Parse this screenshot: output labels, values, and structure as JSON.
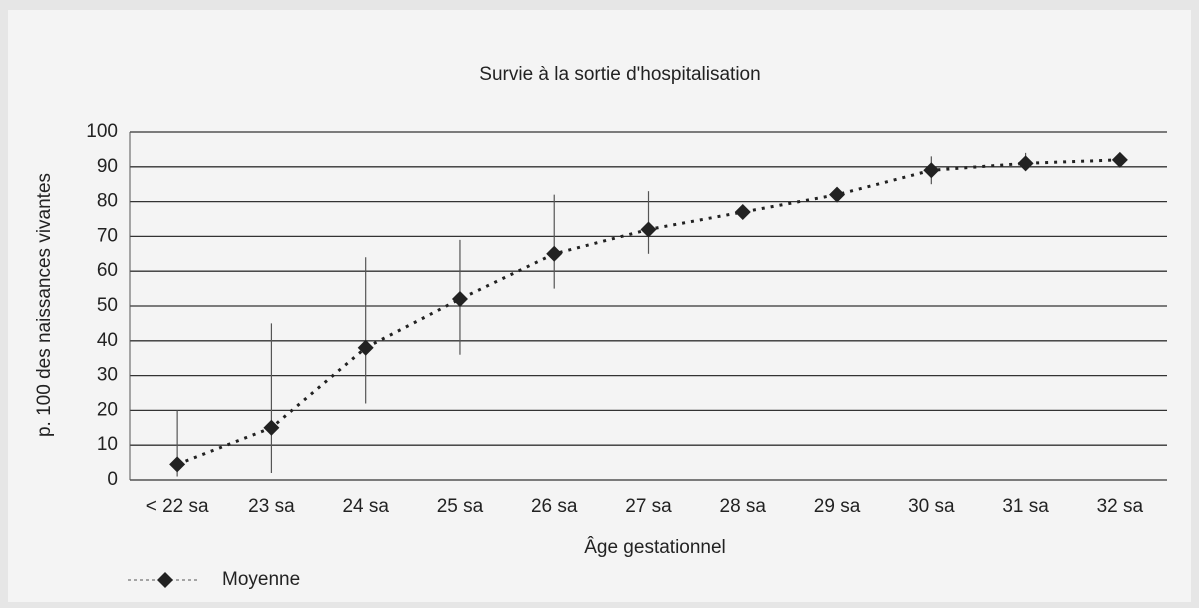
{
  "chart_data": {
    "type": "line",
    "title": "Survie à la sortie d'hospitalisation",
    "x_label": "Âge gestationnel",
    "y_label": "p. 100 des naissances vivantes",
    "categories": [
      "< 22 sa",
      "23 sa",
      "24 sa",
      "25 sa",
      "26 sa",
      "27 sa",
      "28 sa",
      "29 sa",
      "30 sa",
      "31 sa",
      "32 sa"
    ],
    "series": [
      {
        "name": "Moyenne",
        "color": "#222222",
        "values": [
          4.5,
          15,
          38,
          52,
          65,
          72,
          77,
          82,
          89,
          91,
          92
        ],
        "low": [
          1,
          2,
          22,
          36,
          55,
          65,
          75,
          80,
          85,
          89,
          91
        ],
        "high": [
          20,
          45,
          64,
          69,
          82,
          83,
          79,
          84,
          93,
          94,
          93
        ]
      }
    ],
    "ylim": [
      0,
      100
    ],
    "yticks": [
      0,
      10,
      20,
      30,
      40,
      50,
      60,
      70,
      80,
      90,
      100
    ],
    "grid": true,
    "legend": "bottom-left"
  }
}
